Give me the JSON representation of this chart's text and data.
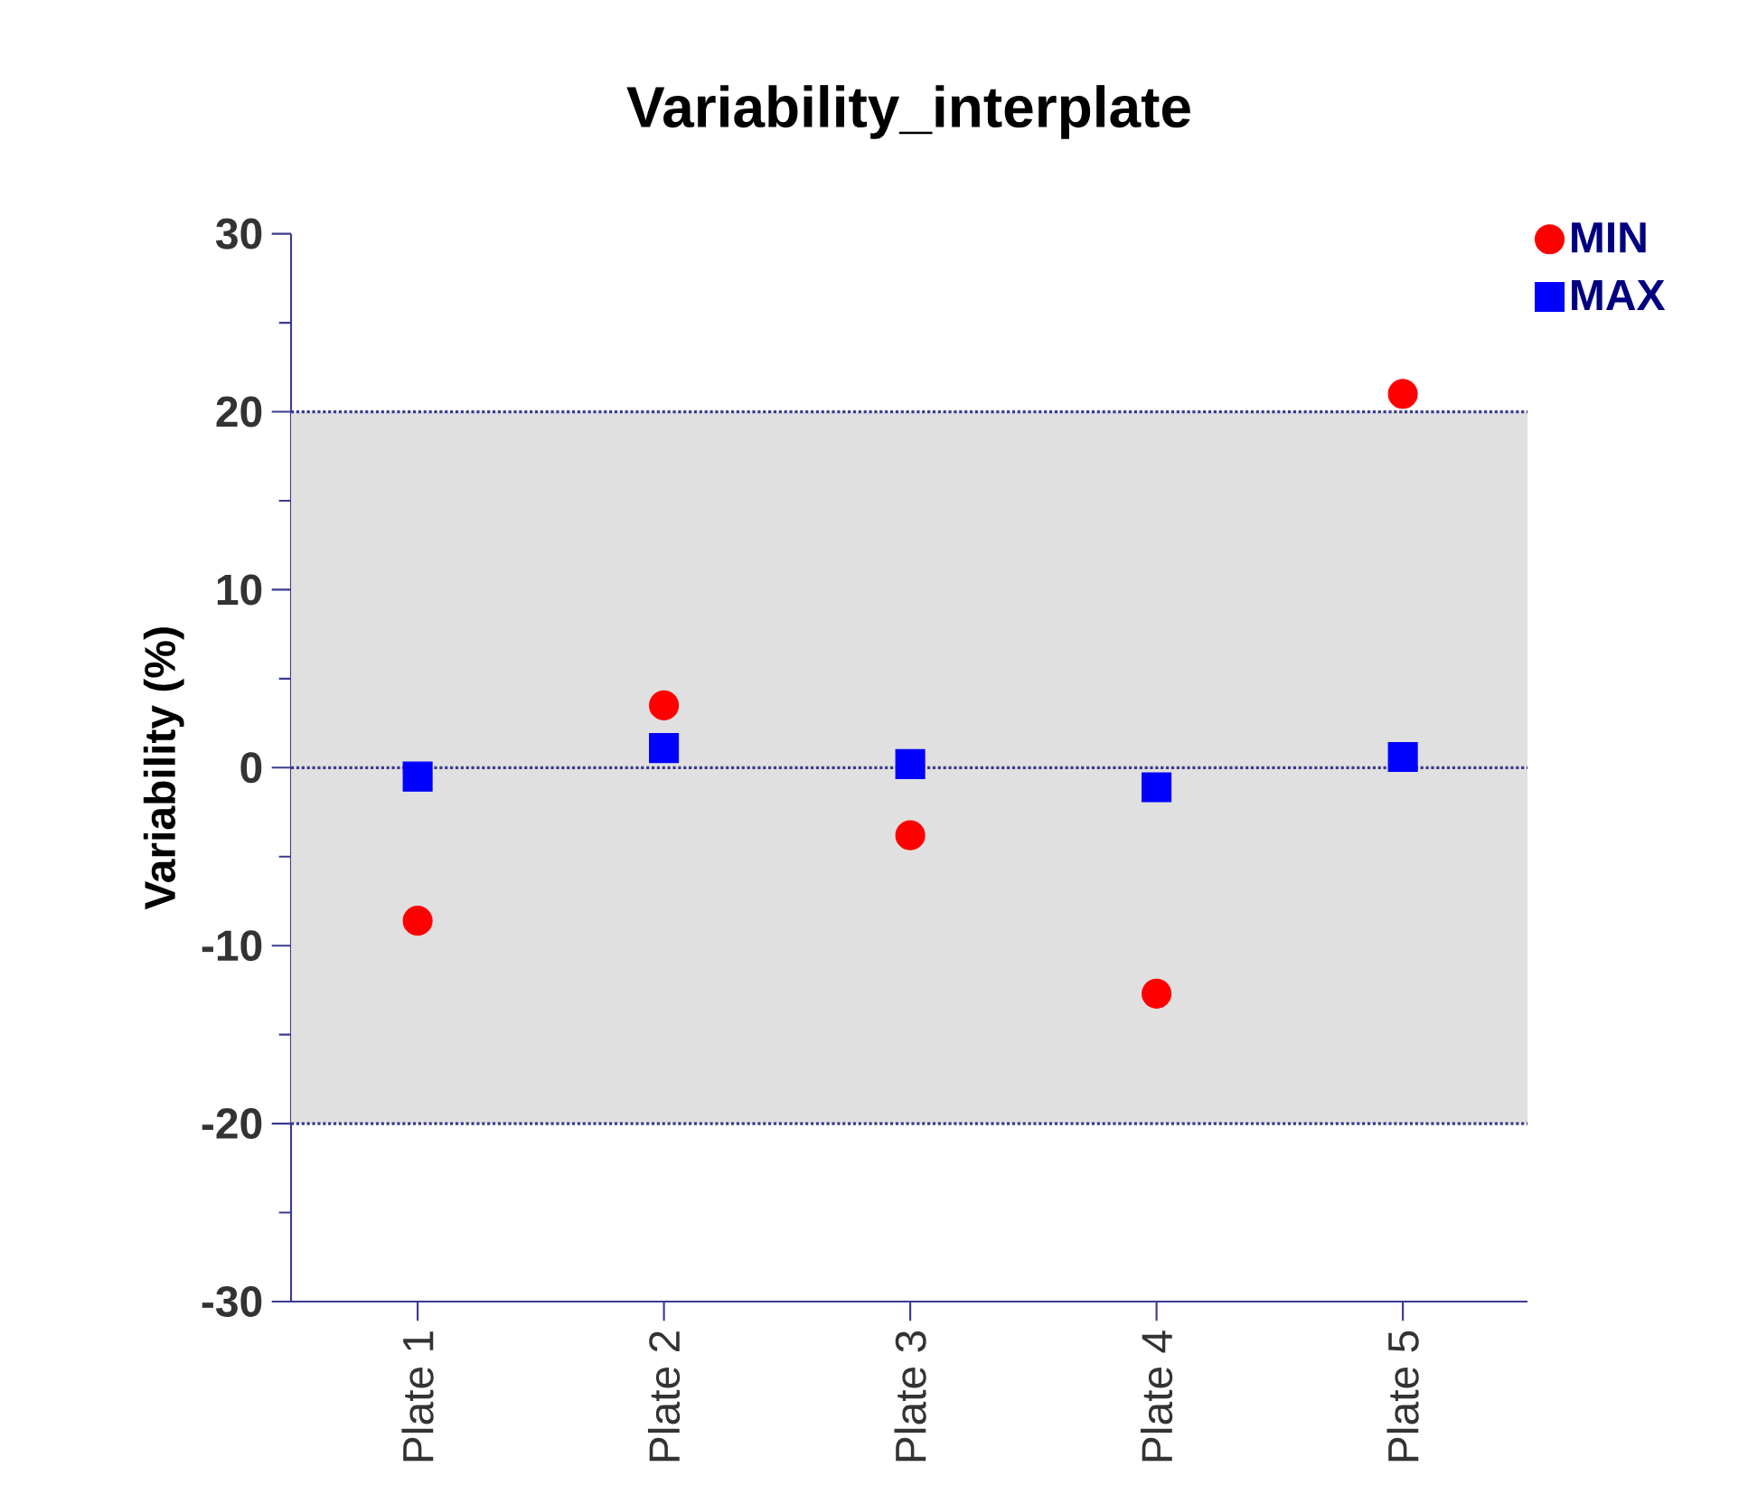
{
  "chart_data": {
    "type": "scatter",
    "title": "Variability_interplate",
    "ylabel": "Variability (%)",
    "categories": [
      "Plate 1",
      "Plate 2",
      "Plate 3",
      "Plate 4",
      "Plate 5"
    ],
    "series": [
      {
        "name": "MIN",
        "color": "#ff0000",
        "marker": "circle",
        "values": [
          -8.6,
          3.5,
          -3.8,
          -12.7,
          21.0
        ]
      },
      {
        "name": "MAX",
        "color": "#0000ff",
        "marker": "square",
        "values": [
          -0.5,
          1.1,
          0.2,
          -1.1,
          0.6
        ]
      }
    ],
    "ylim": [
      -30,
      30
    ],
    "yticks": [
      -30,
      -20,
      -10,
      0,
      10,
      20,
      30
    ],
    "bands": [
      {
        "axis": "y",
        "from": -20,
        "to": 20,
        "color": "#e0e0e0"
      }
    ],
    "ref_lines": [
      {
        "axis": "y",
        "value": 20,
        "color": "#3b3b8f",
        "line_style": "dotted"
      },
      {
        "axis": "y",
        "value": -20,
        "color": "#3b3b8f",
        "line_style": "dotted"
      },
      {
        "axis": "y",
        "value": 0,
        "color": "#3b3b8f",
        "line_style": "dotted"
      }
    ],
    "legend": "top right",
    "grid": false
  }
}
